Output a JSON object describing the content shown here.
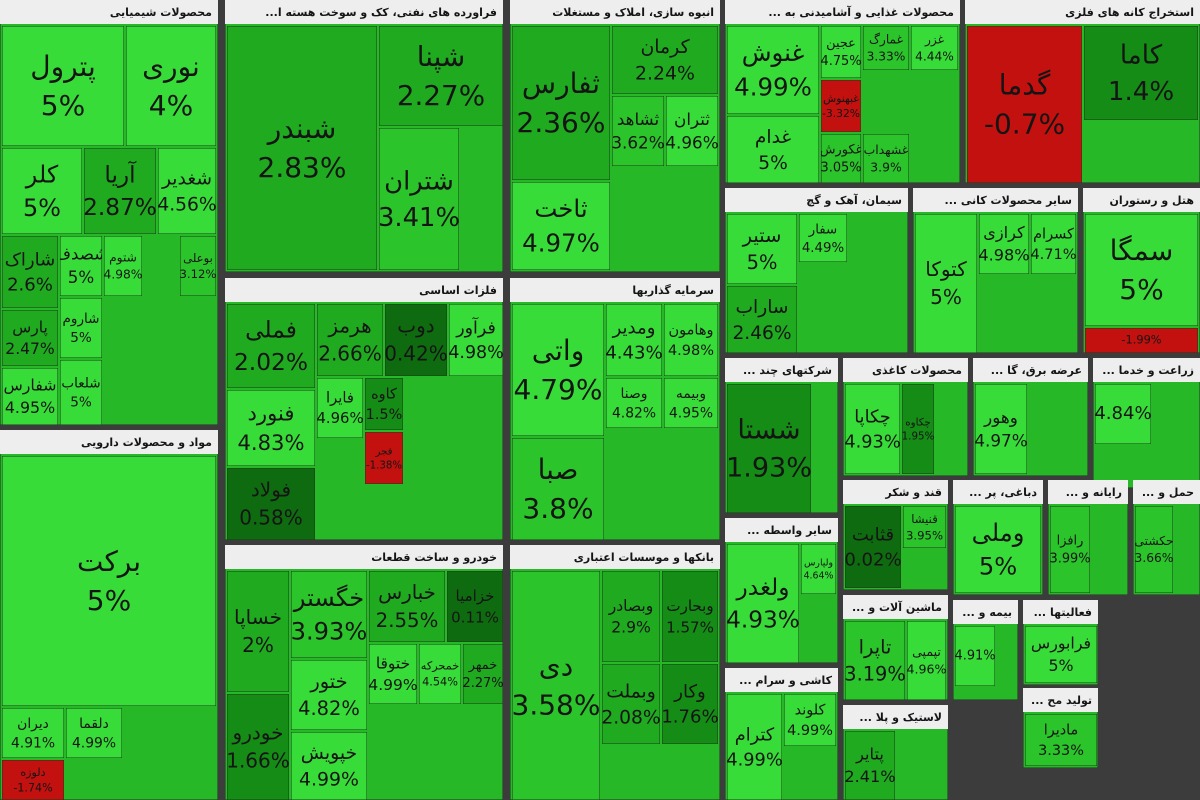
{
  "chart_data": {
    "type": "treemap",
    "sectors": [
      {
        "title": "محصولات شیمیایی",
        "labels": [
          "پترول",
          "نوری",
          "کلر",
          "آریا",
          "شغدیر",
          "شاراک",
          "پارس",
          "شفارس",
          "شصدف",
          "شاروم",
          "شلعاب",
          "شتوم",
          "بوعلی"
        ],
        "values": [
          5,
          4,
          5,
          2.87,
          4.56,
          2.6,
          2.47,
          4.95,
          5,
          5,
          5,
          4.98,
          3.12
        ],
        "value_labels": [
          "5%",
          "4%",
          "5%",
          "2.87%",
          "4.56%",
          "2.6%",
          "2.47%",
          "4.95%",
          "5%",
          "5%",
          "5%",
          "4.98%",
          "3.12%"
        ]
      },
      {
        "title": "...فراورده های نفتی، کک و سوخت هسته ا",
        "labels": [
          "شبندر",
          "شپنا",
          "شتران"
        ],
        "values": [
          2.83,
          2.27,
          3.41
        ],
        "value_labels": [
          "2.83%",
          "2.27%",
          "3.41%"
        ]
      },
      {
        "title": "انبوه سازی، املاک و مستغلات",
        "labels": [
          "ثفارس",
          "کرمان",
          "ثاخت",
          "ثشاهد",
          "ثتران"
        ],
        "values": [
          2.36,
          2.24,
          4.97,
          3.62,
          4.96
        ],
        "value_labels": [
          "2.36%",
          "2.24%",
          "4.97%",
          "3.62%",
          "4.96%"
        ]
      },
      {
        "title": "... محصولات غذایی و آشامیدنی به",
        "labels": [
          "غنوش",
          "غدام",
          "عجین",
          "غمارگ",
          "غزر",
          "غبهنوش",
          "غکورش",
          "غشهداب"
        ],
        "values": [
          4.99,
          5,
          4.75,
          3.33,
          4.44,
          -3.32,
          3.05,
          3.9
        ],
        "value_labels": [
          "4.99%",
          "5%",
          "4.75%",
          "3.33%",
          "4.44%",
          "-3.32%",
          "3.05%",
          "3.9%"
        ]
      },
      {
        "title": "استخراج کانه های فلزی",
        "labels": [
          "گدما",
          "کاما"
        ],
        "values": [
          -0.7,
          1.4
        ],
        "value_labels": [
          "-0.7%",
          "1.4%"
        ]
      },
      {
        "title": "فلزات اساسی",
        "labels": [
          "فملی",
          "هرمز",
          "دوب",
          "فرآور",
          "فنورد",
          "فایرا",
          "کاوه",
          "فولاد",
          "فجر"
        ],
        "values": [
          2.02,
          2.66,
          0.42,
          4.98,
          4.83,
          4.96,
          1.5,
          0.58,
          -1.38
        ],
        "value_labels": [
          "2.02%",
          "2.66%",
          "0.42%",
          "4.98%",
          "4.83%",
          "4.96%",
          "1.5%",
          "0.58%",
          "-1.38%"
        ]
      },
      {
        "title": "سرمایه گذاریها",
        "labels": [
          "واتی",
          "صبا",
          "ومدیر",
          "وهامون",
          "وصنا",
          "وبیمه"
        ],
        "values": [
          4.79,
          3.8,
          4.43,
          4.98,
          4.82,
          4.95
        ],
        "value_labels": [
          "4.79%",
          "3.8%",
          "4.43%",
          "4.98%",
          "4.82%",
          "4.95%"
        ]
      },
      {
        "title": "مواد و محصولات دارویی",
        "labels": [
          "برکت",
          "دیران",
          "دلقما",
          "دلوزه"
        ],
        "values": [
          5,
          4.91,
          4.99,
          -1.74
        ],
        "value_labels": [
          "5%",
          "4.91%",
          "4.99%",
          "-1.74%"
        ]
      },
      {
        "title": "خودرو و ساخت قطعات",
        "labels": [
          "خساپا",
          "خودرو",
          "خگستر",
          "ختور",
          "خپویش",
          "خبارس",
          "خزامیا",
          "ختوقا",
          "خمحرکه",
          "خمهر"
        ],
        "values": [
          2,
          1.66,
          3.93,
          4.82,
          4.99,
          2.55,
          0.11,
          4.99,
          4.54,
          2.27
        ],
        "value_labels": [
          "2%",
          "1.66%",
          "3.93%",
          "4.82%",
          "4.99%",
          "2.55%",
          "0.11%",
          "4.99%",
          "4.54%",
          "2.27%"
        ]
      },
      {
        "title": "بانکها و موسسات اعتباری",
        "labels": [
          "دی",
          "وبصادر",
          "وبحارت",
          "وبملت",
          "وکار"
        ],
        "values": [
          3.58,
          2.9,
          1.57,
          2.08,
          1.76
        ],
        "value_labels": [
          "3.58%",
          "2.9%",
          "1.57%",
          "2.08%",
          "1.76%"
        ]
      },
      {
        "title": "سیمان، آهک و گچ",
        "labels": [
          "ستیر",
          "ساراب",
          "سفار"
        ],
        "values": [
          5,
          2.46,
          4.49
        ],
        "value_labels": [
          "5%",
          "2.46%",
          "4.49%"
        ]
      },
      {
        "title": "... سایر محصولات کانی",
        "labels": [
          "کتوکا",
          "کرازی",
          "کسرام"
        ],
        "values": [
          5,
          4.98,
          4.71
        ],
        "value_labels": [
          "5%",
          "4.98%",
          "4.71%"
        ]
      },
      {
        "title": "هتل و رستوران",
        "labels": [
          "سمگا",
          null
        ],
        "values": [
          5,
          -1.99
        ],
        "value_labels": [
          "5%",
          "-1.99%"
        ]
      },
      {
        "title": "... شرکتهای چند",
        "labels": [
          "شستا"
        ],
        "values": [
          1.93
        ],
        "value_labels": [
          "1.93%"
        ]
      },
      {
        "title": "محصولات کاغذی",
        "labels": [
          "چکاپا",
          "چکاوه"
        ],
        "values": [
          4.93,
          1.95
        ],
        "value_labels": [
          "4.93%",
          "1.95%"
        ]
      },
      {
        "title": "... عرضه برق، گا",
        "labels": [
          "وهور"
        ],
        "values": [
          4.97
        ],
        "value_labels": [
          "4.97%"
        ]
      },
      {
        "title": "... زراعت و خدما",
        "labels": [
          null
        ],
        "values": [
          4.84
        ],
        "value_labels": [
          "4.84%"
        ]
      },
      {
        "title": "قند و شکر",
        "labels": [
          "قثابت",
          "قنیشا"
        ],
        "values": [
          0.02,
          3.95
        ],
        "value_labels": [
          "0.02%",
          "3.95%"
        ]
      },
      {
        "title": "... دباغی، پر",
        "labels": [
          "وملی"
        ],
        "values": [
          5
        ],
        "value_labels": [
          "5%"
        ]
      },
      {
        "title": "... رایانه و",
        "labels": [
          "رافزا"
        ],
        "values": [
          3.99
        ],
        "value_labels": [
          "3.99%"
        ]
      },
      {
        "title": "... حمل و",
        "labels": [
          "حکشتی"
        ],
        "values": [
          3.66
        ],
        "value_labels": [
          "3.66%"
        ]
      },
      {
        "title": "... سایر واسطه",
        "labels": [
          "ولغدر",
          "ولپارس"
        ],
        "values": [
          4.93,
          4.64
        ],
        "value_labels": [
          "4.93%",
          "4.64%"
        ]
      },
      {
        "title": "... ماشین آلات و",
        "labels": [
          "تاپرا",
          "تپمپی"
        ],
        "values": [
          3.19,
          4.96
        ],
        "value_labels": [
          "3.19%",
          "4.96%"
        ]
      },
      {
        "title": "... کاشی و سرام",
        "labels": [
          "کترام",
          "کلوند"
        ],
        "values": [
          4.99,
          4.99
        ],
        "value_labels": [
          "4.99%",
          "4.99%"
        ]
      },
      {
        "title": "... لاستیک و پلا",
        "labels": [
          "پتایر"
        ],
        "values": [
          2.41
        ],
        "value_labels": [
          "2.41%"
        ]
      },
      {
        "title": "... بیمه و",
        "labels": [
          null
        ],
        "values": [
          4.91
        ],
        "value_labels": [
          "4.91%"
        ]
      },
      {
        "title": "... فعالیتها",
        "labels": [
          "فرابورس"
        ],
        "values": [
          5
        ],
        "value_labels": [
          "5%"
        ]
      },
      {
        "title": "... تولید مح",
        "labels": [
          "مادیرا"
        ],
        "values": [
          3.33
        ],
        "value_labels": [
          "3.33%"
        ]
      }
    ]
  }
}
